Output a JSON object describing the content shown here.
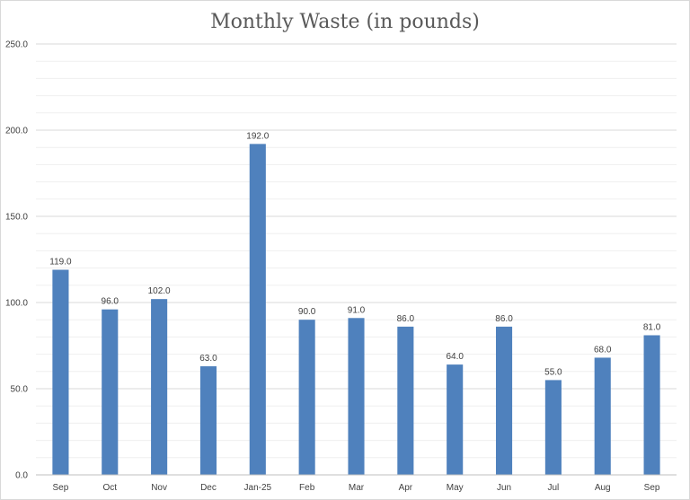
{
  "chart_data": {
    "type": "bar",
    "title": "Monthly Waste (in pounds)",
    "categories": [
      "Sep",
      "Oct",
      "Nov",
      "Dec",
      "Jan-25",
      "Feb",
      "Mar",
      "Apr",
      "May",
      "Jun",
      "Jul",
      "Aug",
      "Sep"
    ],
    "series": [
      {
        "values": [
          119.0,
          96.0,
          102.0,
          63.0,
          192.0,
          90.0,
          91.0,
          86.0,
          64.0,
          86.0,
          55.0,
          68.0,
          81.0
        ],
        "color": "#4f81bd"
      }
    ],
    "ylim": [
      0,
      250
    ],
    "y_major_step": 50,
    "y_minor_step": 10,
    "y_tick_labels": [
      "0.0",
      "50.0",
      "100.0",
      "150.0",
      "200.0",
      "250.0"
    ],
    "data_labels": [
      "119.0",
      "96.0",
      "102.0",
      "63.0",
      "192.0",
      "90.0",
      "91.0",
      "86.0",
      "64.0",
      "86.0",
      "55.0",
      "68.0",
      "81.0"
    ],
    "xlabel": "",
    "ylabel": "",
    "grid": true,
    "legend": "none"
  }
}
